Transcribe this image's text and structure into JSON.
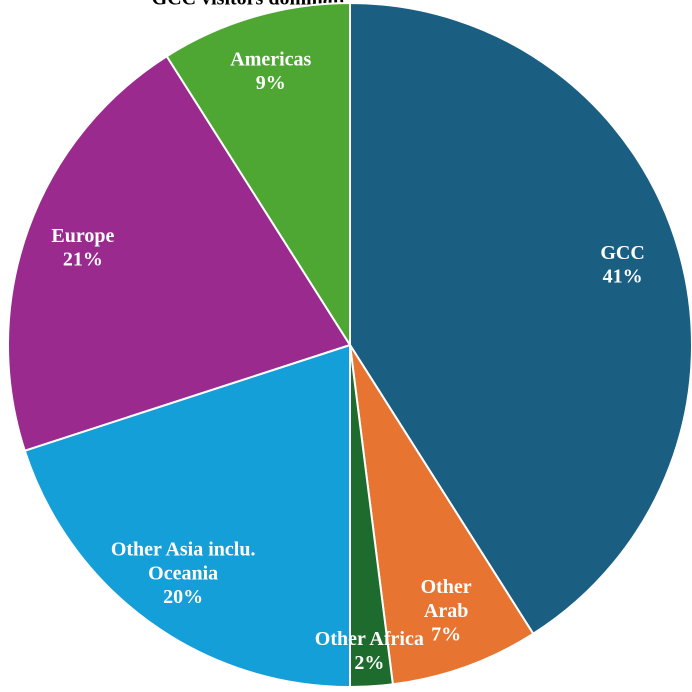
{
  "chart_data": {
    "type": "pie",
    "title": "GCC visitors dominate",
    "categories": [
      "GCC",
      "Other\nArab",
      "Other Africa",
      "Other Asia inclu.\nOceania",
      "Europe",
      "Americas"
    ],
    "values": [
      41,
      7,
      2,
      20,
      21,
      9
    ],
    "value_labels": [
      "41%",
      "7%",
      "2%",
      "20%",
      "21%",
      "9%"
    ],
    "colors": [
      "#1a5e82",
      "#e87432",
      "#1e6b2e",
      "#149fd8",
      "#9b2a8f",
      "#4ea733"
    ]
  }
}
